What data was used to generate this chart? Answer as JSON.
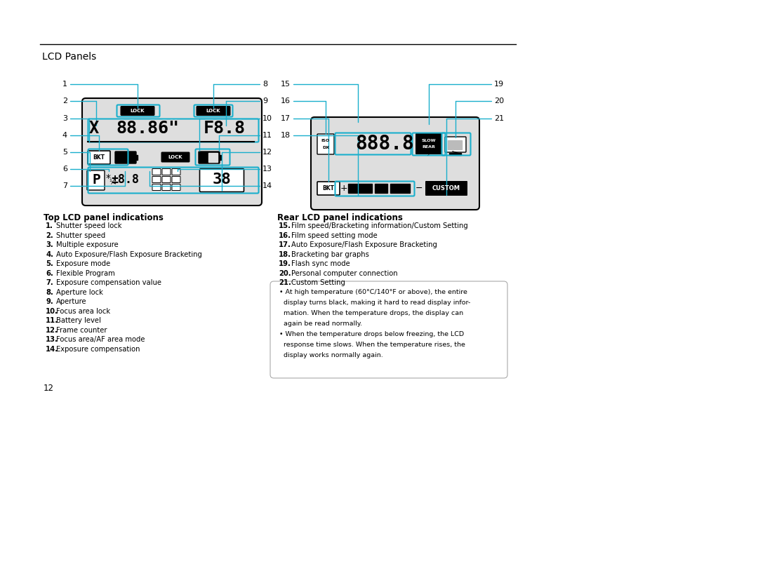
{
  "title": "LCD Panels",
  "page_number": "12",
  "top_lcd_title": "Top LCD panel indications",
  "top_lcd_items": [
    "1. Shutter speed lock",
    "2. Shutter speed",
    "3. Multiple exposure",
    "4. Auto Exposure/Flash Exposure Bracketing",
    "5. Exposure mode",
    "6. Flexible Program",
    "7. Exposure compensation value",
    "8. Aperture lock",
    "9. Aperture",
    "10. Focus area lock",
    "11. Battery level",
    "12. Frame counter",
    "13. Focus area/AF area mode",
    "14. Exposure compensation"
  ],
  "rear_lcd_title": "Rear LCD panel indications",
  "rear_lcd_items": [
    "15. Film speed/Bracketing information/Custom Setting",
    "16. Film speed setting mode",
    "17. Auto Exposure/Flash Exposure Bracketing",
    "18. Bracketing bar graphs",
    "19. Flash sync mode",
    "20. Personal computer connection",
    "21. Custom Setting"
  ],
  "note_lines": [
    "• At high temperature (60°C/140°F or above), the entire",
    "  display turns black, making it hard to read display infor-",
    "  mation. When the temperature drops, the display can",
    "  again be read normally.",
    "• When the temperature drops below freezing, the LCD",
    "  response time slows. When the temperature rises, the",
    "  display works normally again."
  ],
  "accent_color": "#1AAFCC",
  "bg_color": "#FFFFFF",
  "text_color": "#000000"
}
